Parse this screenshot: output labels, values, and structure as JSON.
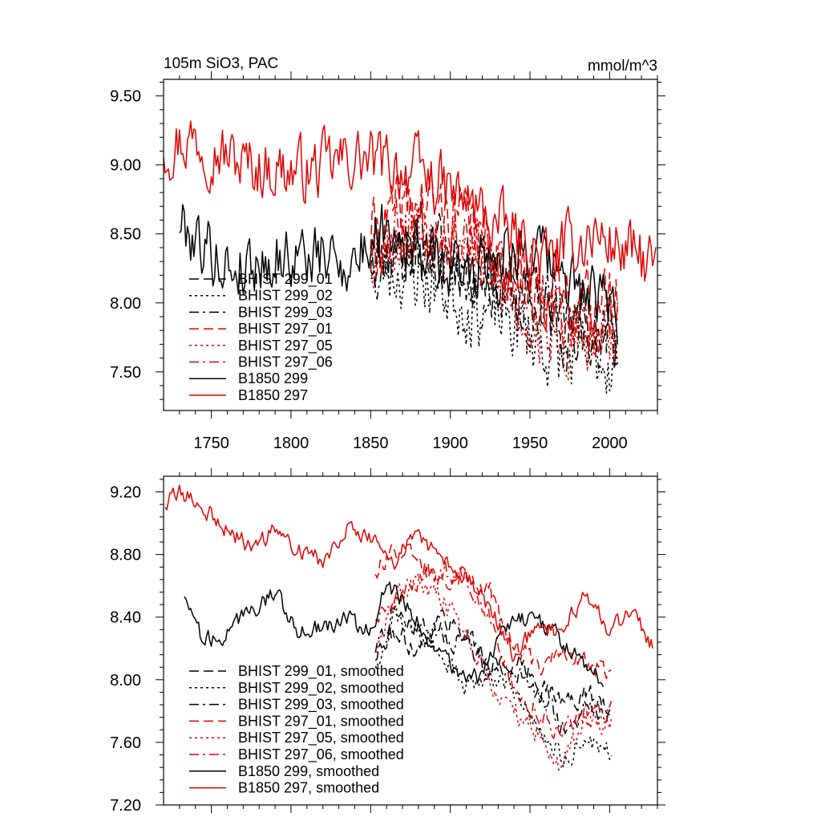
{
  "chart_data": [
    {
      "type": "line",
      "title": "105m SiO3, PAC",
      "units": "mmol/m^3",
      "xlim": [
        1720,
        2030
      ],
      "ylim": [
        7.22,
        9.62
      ],
      "xticks": [
        1750,
        1800,
        1850,
        1900,
        1950,
        2000
      ],
      "xtick_labels": [
        "1750",
        "1800",
        "1850",
        "1900",
        "1950",
        "2000"
      ],
      "yticks": [
        7.5,
        8.0,
        8.5,
        9.0,
        9.5
      ],
      "ytick_labels": [
        "7.50",
        "8.00",
        "8.50",
        "9.00",
        "9.50"
      ],
      "legend_placement": "bottom-left",
      "series": [
        {
          "name": "BHIST 299_01",
          "color": "#000000",
          "dash": "dashed",
          "seed": 11,
          "noise": 0.22,
          "x": [
            1850,
            1880,
            1910,
            1940,
            1970,
            2005
          ],
          "y": [
            8.35,
            8.45,
            8.3,
            8.05,
            7.85,
            7.7
          ]
        },
        {
          "name": "BHIST 299_02",
          "color": "#000000",
          "dash": "dotted",
          "seed": 23,
          "noise": 0.24,
          "x": [
            1850,
            1880,
            1910,
            1940,
            1970,
            2005
          ],
          "y": [
            8.3,
            8.2,
            8.0,
            7.85,
            7.6,
            7.6
          ]
        },
        {
          "name": "BHIST 299_03",
          "color": "#000000",
          "dash": "dashdot",
          "seed": 37,
          "noise": 0.22,
          "x": [
            1850,
            1880,
            1910,
            1940,
            1970,
            2005
          ],
          "y": [
            8.35,
            8.35,
            8.25,
            8.1,
            7.9,
            7.75
          ]
        },
        {
          "name": "BHIST 297_01",
          "color": "#e00000",
          "dash": "dashed",
          "seed": 41,
          "noise": 0.22,
          "x": [
            1850,
            1880,
            1910,
            1940,
            1970,
            2005
          ],
          "y": [
            8.5,
            8.75,
            8.6,
            8.2,
            8.05,
            8.0
          ]
        },
        {
          "name": "BHIST 297_05",
          "color": "#e00000",
          "dash": "dotted",
          "seed": 53,
          "noise": 0.24,
          "x": [
            1850,
            1880,
            1910,
            1940,
            1970,
            2005
          ],
          "y": [
            8.4,
            8.55,
            8.45,
            8.0,
            7.7,
            7.7
          ]
        },
        {
          "name": "BHIST 297_06",
          "color": "#e00000",
          "dash": "dashdot",
          "seed": 67,
          "noise": 0.22,
          "x": [
            1850,
            1880,
            1910,
            1940,
            1970,
            2005
          ],
          "y": [
            8.45,
            8.6,
            8.55,
            8.1,
            7.9,
            7.85
          ]
        },
        {
          "name": "B1850 299",
          "color": "#000000",
          "dash": "solid",
          "seed": 79,
          "noise": 0.2,
          "x": [
            1730,
            1760,
            1800,
            1840,
            1860,
            1900,
            1940,
            1970,
            2005
          ],
          "y": [
            8.6,
            8.25,
            8.35,
            8.3,
            8.6,
            8.2,
            8.45,
            8.2,
            7.9
          ]
        },
        {
          "name": "B1850 297",
          "color": "#e00000",
          "dash": "solid",
          "seed": 97,
          "noise": 0.2,
          "x": [
            1720,
            1740,
            1770,
            1810,
            1840,
            1880,
            1920,
            1960,
            1990,
            2029
          ],
          "y": [
            9.15,
            9.2,
            9.0,
            8.95,
            9.05,
            8.95,
            8.65,
            8.3,
            8.5,
            8.25
          ]
        }
      ]
    },
    {
      "type": "line",
      "title": "",
      "xlim": [
        1720,
        2030
      ],
      "ylim": [
        7.2,
        9.3
      ],
      "xticks": [
        1750,
        1800,
        1850,
        1900,
        1950,
        2000
      ],
      "yticks": [
        7.2,
        7.6,
        8.0,
        8.4,
        8.8,
        9.2
      ],
      "ytick_labels": [
        "7.20",
        "7.60",
        "8.00",
        "8.40",
        "8.80",
        "9.20"
      ],
      "legend_placement": "bottom-left",
      "series": [
        {
          "name": "BHIST 299_01, smoothed",
          "color": "#000000",
          "dash": "dashed",
          "seed": 111,
          "noise": 0.06,
          "x": [
            1853,
            1865,
            1880,
            1895,
            1910,
            1925,
            1940,
            1955,
            1970,
            1985,
            2001
          ],
          "y": [
            8.15,
            8.3,
            8.2,
            8.4,
            8.3,
            8.1,
            8.1,
            8.0,
            7.85,
            7.9,
            7.85
          ]
        },
        {
          "name": "BHIST 299_02, smoothed",
          "color": "#000000",
          "dash": "dotted",
          "seed": 123,
          "noise": 0.06,
          "x": [
            1853,
            1865,
            1880,
            1895,
            1910,
            1925,
            1940,
            1955,
            1970,
            1985,
            2001
          ],
          "y": [
            8.1,
            8.4,
            8.3,
            8.15,
            7.95,
            8.05,
            7.9,
            7.7,
            7.5,
            7.6,
            7.55
          ]
        },
        {
          "name": "BHIST 299_03, smoothed",
          "color": "#000000",
          "dash": "dashdot",
          "seed": 137,
          "noise": 0.06,
          "x": [
            1853,
            1865,
            1880,
            1895,
            1910,
            1925,
            1940,
            1955,
            1970,
            1985,
            2001
          ],
          "y": [
            8.2,
            8.45,
            8.35,
            8.3,
            8.2,
            8.05,
            8.05,
            7.9,
            7.7,
            7.8,
            7.8
          ]
        },
        {
          "name": "BHIST 297_01, smoothed",
          "color": "#e00000",
          "dash": "dashed",
          "seed": 141,
          "noise": 0.06,
          "x": [
            1853,
            1865,
            1880,
            1895,
            1910,
            1925,
            1940,
            1955,
            1970,
            1985,
            2001
          ],
          "y": [
            8.7,
            8.85,
            8.75,
            8.65,
            8.7,
            8.55,
            8.2,
            8.1,
            8.2,
            8.1,
            8.05
          ]
        },
        {
          "name": "BHIST 297_05, smoothed",
          "color": "#e00000",
          "dash": "dotted",
          "seed": 153,
          "noise": 0.06,
          "x": [
            1853,
            1865,
            1880,
            1895,
            1910,
            1925,
            1940,
            1955,
            1970,
            1985,
            2001
          ],
          "y": [
            8.2,
            8.55,
            8.6,
            8.5,
            8.3,
            8.0,
            7.8,
            7.65,
            7.45,
            7.75,
            7.7
          ]
        },
        {
          "name": "BHIST 297_06, smoothed",
          "color": "#e00000",
          "dash": "dashdot",
          "seed": 167,
          "noise": 0.06,
          "x": [
            1853,
            1865,
            1880,
            1895,
            1910,
            1925,
            1940,
            1955,
            1970,
            1985,
            2001
          ],
          "y": [
            8.4,
            8.5,
            8.65,
            8.7,
            8.65,
            8.4,
            7.95,
            7.8,
            7.65,
            7.8,
            7.8
          ]
        },
        {
          "name": "B1850 299, smoothed",
          "color": "#000000",
          "dash": "solid",
          "seed": 179,
          "noise": 0.05,
          "x": [
            1733,
            1745,
            1760,
            1775,
            1790,
            1805,
            1820,
            1835,
            1850,
            1860,
            1875,
            1890,
            1905,
            1920,
            1935,
            1950,
            1965,
            1980,
            1996
          ],
          "y": [
            8.55,
            8.25,
            8.3,
            8.45,
            8.55,
            8.3,
            8.35,
            8.4,
            8.3,
            8.6,
            8.45,
            8.2,
            8.05,
            8.0,
            8.35,
            8.4,
            8.3,
            8.15,
            8.0
          ]
        },
        {
          "name": "B1850 297, smoothed",
          "color": "#e00000",
          "dash": "solid",
          "seed": 197,
          "noise": 0.05,
          "x": [
            1721,
            1730,
            1745,
            1760,
            1775,
            1790,
            1805,
            1820,
            1835,
            1850,
            1865,
            1880,
            1895,
            1910,
            1925,
            1940,
            1955,
            1970,
            1985,
            2000,
            2013,
            2027
          ],
          "y": [
            9.12,
            9.2,
            9.1,
            8.95,
            8.85,
            8.95,
            8.85,
            8.75,
            9.0,
            8.9,
            8.75,
            8.95,
            8.75,
            8.65,
            8.45,
            8.15,
            8.35,
            8.3,
            8.55,
            8.3,
            8.45,
            8.22
          ]
        }
      ]
    }
  ]
}
